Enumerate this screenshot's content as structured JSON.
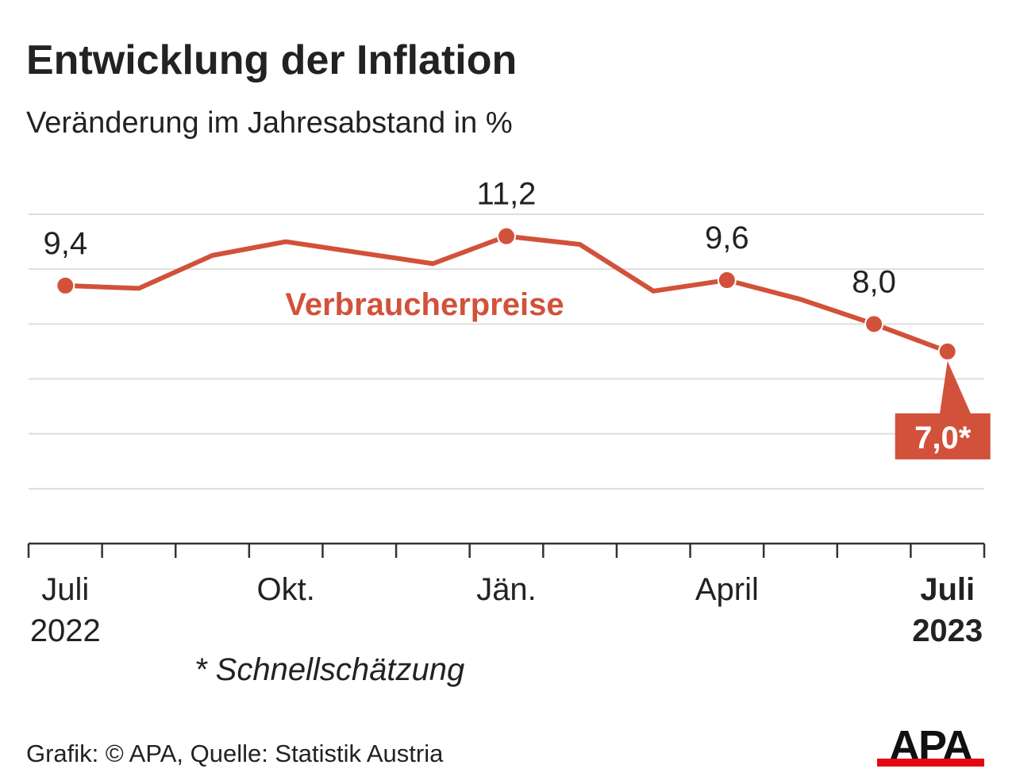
{
  "header": {
    "title": "Entwicklung der Inflation",
    "subtitle": "Veränderung im Jahresabstand in %"
  },
  "footnote": "* Schnellschätzung",
  "source": "Grafik: © APA, Quelle: Statistik Austria",
  "logo": "APA",
  "colors": {
    "series": "#d2513a",
    "grid": "#dddddd",
    "text": "#222222",
    "logo_red": "#e30613"
  },
  "chart_data": {
    "type": "line",
    "title": "Entwicklung der Inflation",
    "subtitle": "Veränderung im Jahresabstand in %",
    "x": [
      "2022-07",
      "2022-08",
      "2022-09",
      "2022-10",
      "2022-11",
      "2022-12",
      "2023-01",
      "2023-02",
      "2023-03",
      "2023-04",
      "2023-05",
      "2023-06",
      "2023-07"
    ],
    "ylim": [
      0,
      12
    ],
    "yticks": [
      0,
      2,
      4,
      6,
      8,
      10,
      12
    ],
    "grid": true,
    "series": [
      {
        "name": "Verbraucherpreise",
        "values": [
          9.4,
          9.3,
          10.5,
          11.0,
          10.6,
          10.2,
          11.2,
          10.9,
          9.2,
          9.6,
          8.9,
          8.0,
          7.0
        ]
      }
    ],
    "x_tick_labels": [
      {
        "index": 0,
        "line1": "Juli",
        "line2": "2022",
        "bold": false
      },
      {
        "index": 3,
        "line1": "Okt.",
        "line2": "",
        "bold": false
      },
      {
        "index": 6,
        "line1": "Jän.",
        "line2": "",
        "bold": false
      },
      {
        "index": 9,
        "line1": "April",
        "line2": "",
        "bold": false
      },
      {
        "index": 12,
        "line1": "Juli",
        "line2": "2023",
        "bold": true
      }
    ],
    "data_labels": [
      {
        "index": 0,
        "text": "9,4"
      },
      {
        "index": 6,
        "text": "11,2"
      },
      {
        "index": 9,
        "text": "9,6"
      },
      {
        "index": 11,
        "text": "8,0"
      }
    ],
    "marked_points": [
      0,
      6,
      9,
      11,
      12
    ],
    "callout": {
      "index": 12,
      "text": "7,0*"
    }
  }
}
